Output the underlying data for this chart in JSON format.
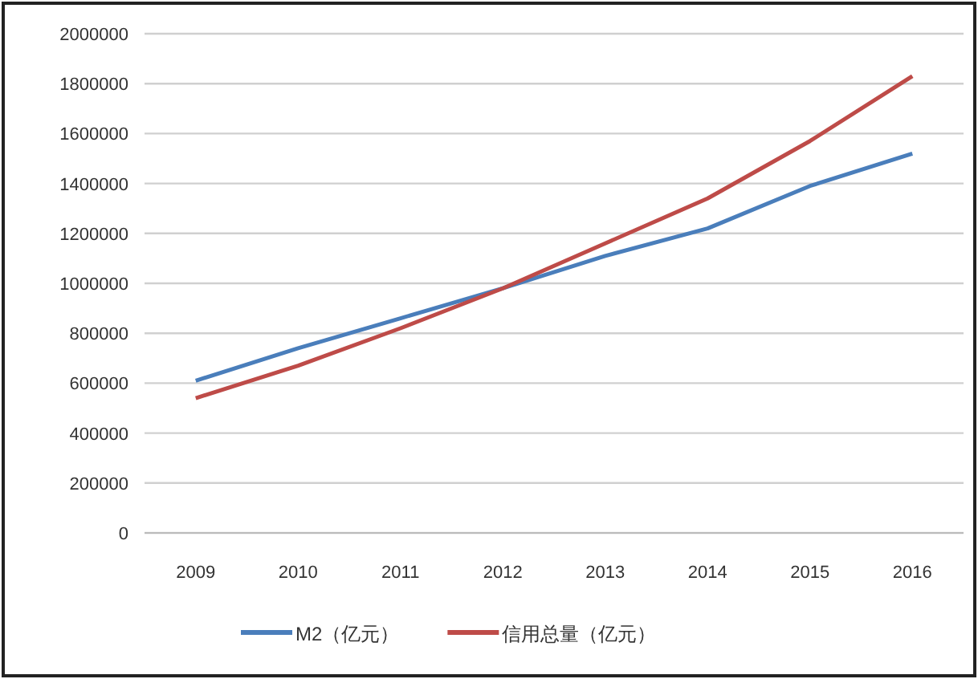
{
  "chart_data": {
    "type": "line",
    "categories": [
      "2009",
      "2010",
      "2011",
      "2012",
      "2013",
      "2014",
      "2015",
      "2016"
    ],
    "series": [
      {
        "name": "M2（亿元）",
        "color": "#4a7ebb",
        "values": [
          610000,
          740000,
          860000,
          980000,
          1110000,
          1220000,
          1390000,
          1520000
        ]
      },
      {
        "name": "信用总量（亿元）",
        "color": "#be4b48",
        "values": [
          540000,
          670000,
          820000,
          980000,
          1160000,
          1340000,
          1570000,
          1830000
        ]
      }
    ],
    "ylim": [
      0,
      2000000
    ],
    "yticks": [
      0,
      200000,
      400000,
      600000,
      800000,
      1000000,
      1200000,
      1400000,
      1600000,
      1800000,
      2000000
    ],
    "grid": "y",
    "legend": "bottom",
    "marker": "none",
    "line_style": "solid"
  }
}
